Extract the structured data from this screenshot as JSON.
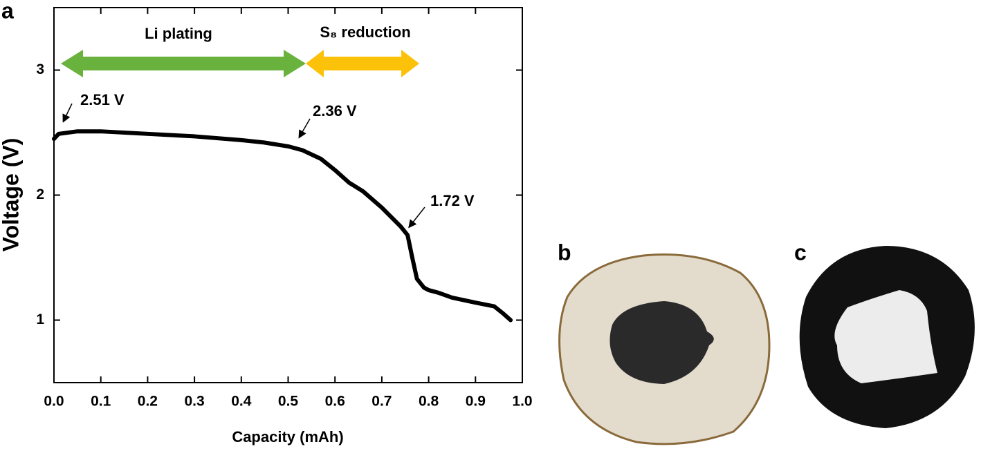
{
  "chart_data": {
    "type": "line",
    "panel_labels": [
      "a",
      "b",
      "c"
    ],
    "xlabel": "Capacity (mAh)",
    "ylabel": "Voltage (V)",
    "x": [
      0,
      0.01,
      0.05,
      0.1,
      0.2,
      0.3,
      0.4,
      0.45,
      0.5,
      0.53,
      0.57,
      0.6,
      0.63,
      0.66,
      0.7,
      0.74,
      0.755,
      0.765,
      0.775,
      0.79,
      0.8,
      0.82,
      0.85,
      0.9,
      0.94,
      0.96,
      0.975
    ],
    "series": [
      {
        "color": "#000000",
        "values": [
          2.45,
          2.49,
          2.51,
          2.51,
          2.49,
          2.47,
          2.44,
          2.42,
          2.39,
          2.36,
          2.29,
          2.2,
          2.1,
          2.03,
          1.9,
          1.75,
          1.68,
          1.5,
          1.33,
          1.26,
          1.24,
          1.22,
          1.18,
          1.14,
          1.11,
          1.05,
          1.0
        ]
      }
    ],
    "xlim": [
      0,
      1
    ],
    "ylim": [
      0.5,
      3.5
    ],
    "xticks": [
      {
        "value": 0,
        "label": "0.0"
      },
      0.1,
      0.2,
      0.3,
      0.4,
      0.5,
      0.6,
      0.7,
      0.8,
      0.9,
      {
        "value": 1,
        "label": "1.0"
      }
    ],
    "yticks": [
      1,
      2,
      3
    ],
    "annotations": [
      "2.51 V",
      "2.36 V",
      "1.72 V",
      "Li plating",
      "S₈ reduction"
    ]
  }
}
